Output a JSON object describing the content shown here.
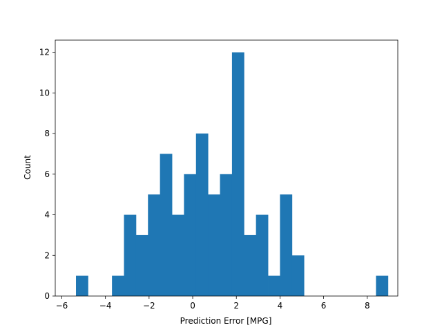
{
  "chart_data": {
    "type": "bar",
    "subtype": "histogram",
    "title": "",
    "xlabel": "Prediction Error [MPG]",
    "ylabel": "Count",
    "xlim": [
      -6.3,
      9.4
    ],
    "ylim": [
      0,
      12.6
    ],
    "xticks": [
      -6,
      -4,
      -2,
      0,
      2,
      4,
      6,
      8
    ],
    "yticks": [
      0,
      2,
      4,
      6,
      8,
      10,
      12
    ],
    "bar_color": "#1f77b4",
    "grid": false,
    "legend": "none",
    "bins": [
      {
        "x0": -5.35,
        "x1": -4.8,
        "count": 1
      },
      {
        "x0": -4.8,
        "x1": -4.25,
        "count": 0
      },
      {
        "x0": -4.25,
        "x1": -3.7,
        "count": 0
      },
      {
        "x0": -3.7,
        "x1": -3.15,
        "count": 1
      },
      {
        "x0": -3.15,
        "x1": -2.6,
        "count": 4
      },
      {
        "x0": -2.6,
        "x1": -2.05,
        "count": 3
      },
      {
        "x0": -2.05,
        "x1": -1.5,
        "count": 5
      },
      {
        "x0": -1.5,
        "x1": -0.95,
        "count": 7
      },
      {
        "x0": -0.95,
        "x1": -0.4,
        "count": 4
      },
      {
        "x0": -0.4,
        "x1": 0.15,
        "count": 6
      },
      {
        "x0": 0.15,
        "x1": 0.7,
        "count": 8
      },
      {
        "x0": 0.7,
        "x1": 1.25,
        "count": 5
      },
      {
        "x0": 1.25,
        "x1": 1.8,
        "count": 6
      },
      {
        "x0": 1.8,
        "x1": 2.35,
        "count": 12
      },
      {
        "x0": 2.35,
        "x1": 2.9,
        "count": 3
      },
      {
        "x0": 2.9,
        "x1": 3.45,
        "count": 4
      },
      {
        "x0": 3.45,
        "x1": 4.0,
        "count": 1
      },
      {
        "x0": 4.0,
        "x1": 4.55,
        "count": 5
      },
      {
        "x0": 4.55,
        "x1": 5.1,
        "count": 2
      },
      {
        "x0": 5.1,
        "x1": 5.65,
        "count": 0
      },
      {
        "x0": 5.65,
        "x1": 6.2,
        "count": 0
      },
      {
        "x0": 6.2,
        "x1": 6.75,
        "count": 0
      },
      {
        "x0": 6.75,
        "x1": 7.3,
        "count": 0
      },
      {
        "x0": 7.3,
        "x1": 7.85,
        "count": 0
      },
      {
        "x0": 7.85,
        "x1": 8.4,
        "count": 0
      },
      {
        "x0": 8.4,
        "x1": 8.95,
        "count": 1
      }
    ]
  }
}
